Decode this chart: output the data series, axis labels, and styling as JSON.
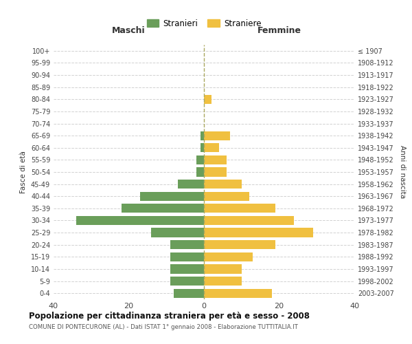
{
  "age_groups": [
    "100+",
    "95-99",
    "90-94",
    "85-89",
    "80-84",
    "75-79",
    "70-74",
    "65-69",
    "60-64",
    "55-59",
    "50-54",
    "45-49",
    "40-44",
    "35-39",
    "30-34",
    "25-29",
    "20-24",
    "15-19",
    "10-14",
    "5-9",
    "0-4"
  ],
  "birth_years": [
    "≤ 1907",
    "1908-1912",
    "1913-1917",
    "1918-1922",
    "1923-1927",
    "1928-1932",
    "1933-1937",
    "1938-1942",
    "1943-1947",
    "1948-1952",
    "1953-1957",
    "1958-1962",
    "1963-1967",
    "1968-1972",
    "1973-1977",
    "1978-1982",
    "1983-1987",
    "1988-1992",
    "1993-1997",
    "1998-2002",
    "2003-2007"
  ],
  "maschi": [
    0,
    0,
    0,
    0,
    0,
    0,
    0,
    1,
    1,
    2,
    2,
    7,
    17,
    22,
    34,
    14,
    9,
    9,
    9,
    9,
    8
  ],
  "femmine": [
    0,
    0,
    0,
    0,
    2,
    0,
    0,
    7,
    4,
    6,
    6,
    10,
    12,
    19,
    24,
    29,
    19,
    13,
    10,
    10,
    18
  ],
  "maschi_color": "#6a9e5a",
  "femmine_color": "#f0c040",
  "bg_color": "#ffffff",
  "grid_color": "#cccccc",
  "title": "Popolazione per cittadinanza straniera per età e sesso - 2008",
  "subtitle": "COMUNE DI PONTECURONE (AL) - Dati ISTAT 1° gennaio 2008 - Elaborazione TUTTITALIA.IT",
  "xlabel_left": "Maschi",
  "xlabel_right": "Femmine",
  "ylabel_left": "Fasce di età",
  "ylabel_right": "Anni di nascita",
  "legend_maschi": "Stranieri",
  "legend_femmine": "Straniere",
  "xlim": 40,
  "bar_height": 0.75,
  "center_line_color": "#aaa860",
  "xticks": [
    -40,
    -20,
    0,
    20,
    40
  ]
}
